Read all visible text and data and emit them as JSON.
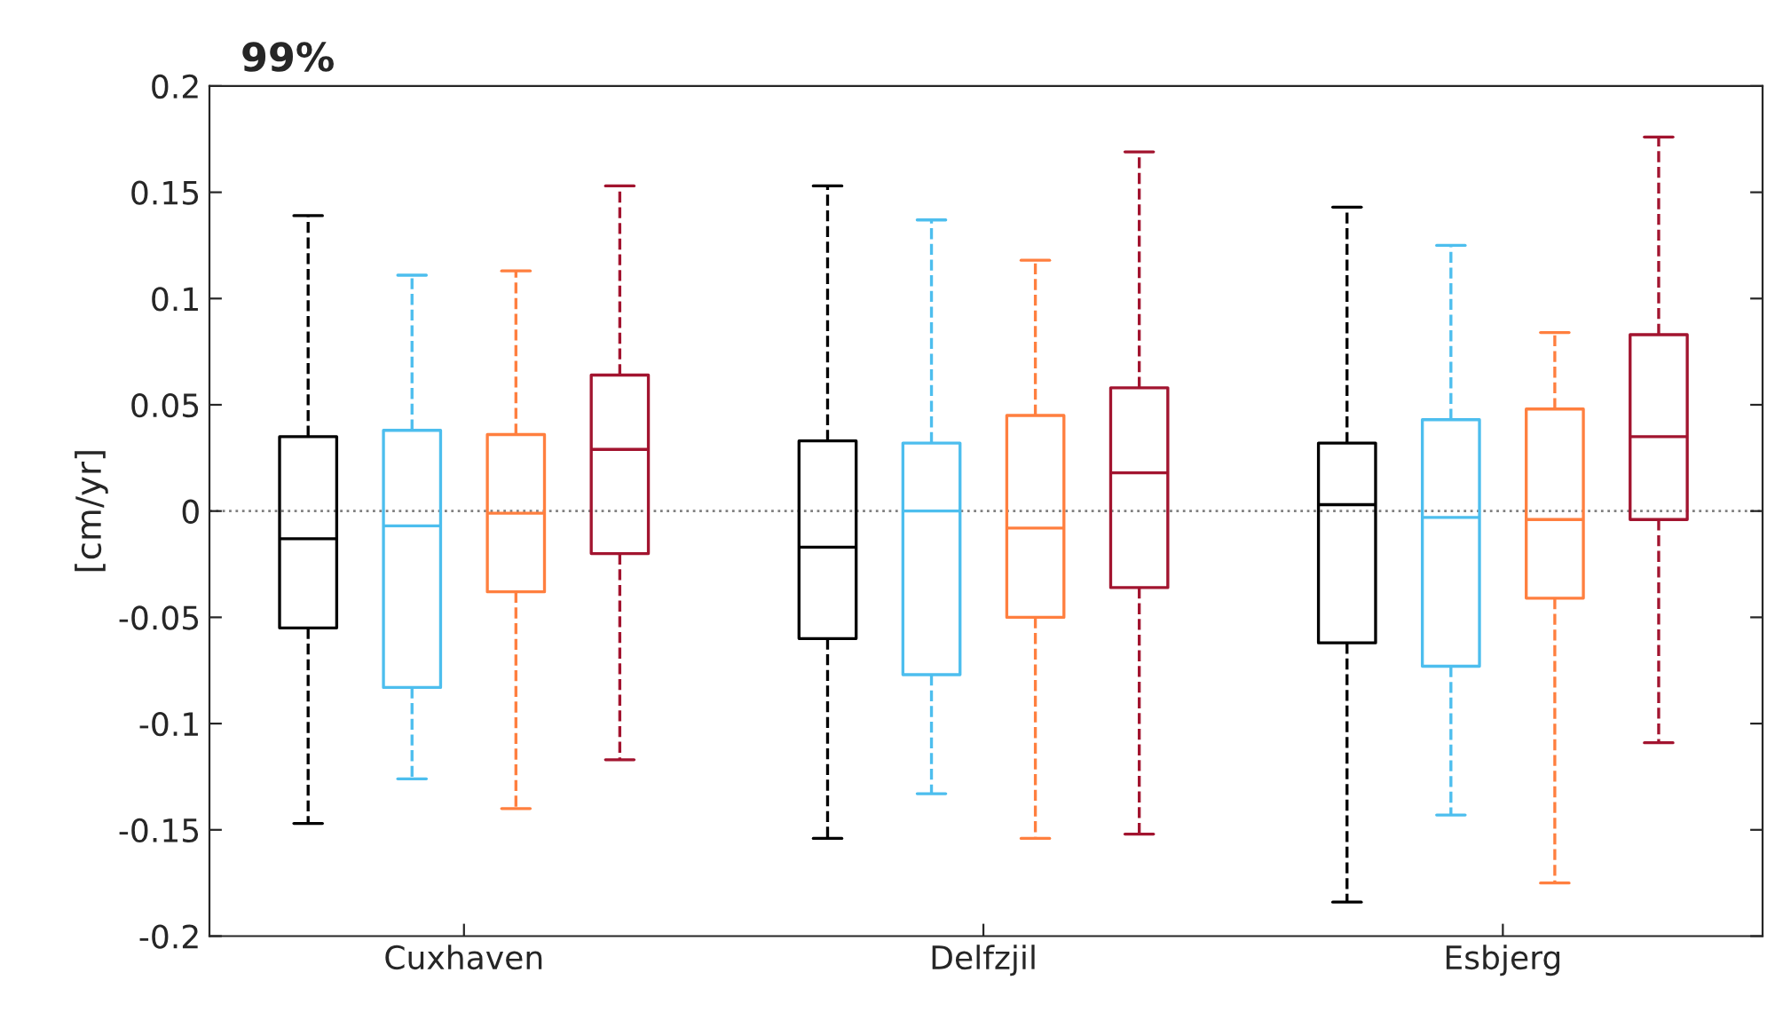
{
  "chart_data": {
    "type": "box",
    "title": "99%",
    "ylabel": "[cm/yr]",
    "categories": [
      "Cuxhaven",
      "Delfzjil",
      "Esbjerg"
    ],
    "ylim": [
      -0.2,
      0.2
    ],
    "yticks": [
      -0.2,
      -0.15,
      -0.1,
      -0.05,
      0,
      0.05,
      0.1,
      0.15,
      0.2
    ],
    "grid": false,
    "legend": false,
    "line_style": "dashed",
    "ref_lines": [
      {
        "axis": "y",
        "value": 0,
        "color": "#808080",
        "line_style": "dotted"
      }
    ],
    "series": [
      {
        "color": "#000000",
        "boxes": [
          {
            "low": -0.147,
            "q1": -0.055,
            "median": -0.013,
            "q3": 0.035,
            "high": 0.139
          },
          {
            "low": -0.154,
            "q1": -0.06,
            "median": -0.017,
            "q3": 0.033,
            "high": 0.153
          },
          {
            "low": -0.184,
            "q1": -0.062,
            "median": 0.003,
            "q3": 0.032,
            "high": 0.143
          }
        ]
      },
      {
        "color": "#4dbeee",
        "boxes": [
          {
            "low": -0.126,
            "q1": -0.083,
            "median": -0.007,
            "q3": 0.038,
            "high": 0.111
          },
          {
            "low": -0.133,
            "q1": -0.077,
            "median": 0.0,
            "q3": 0.032,
            "high": 0.137
          },
          {
            "low": -0.143,
            "q1": -0.073,
            "median": -0.003,
            "q3": 0.043,
            "high": 0.125
          }
        ]
      },
      {
        "color": "#ff7f3f",
        "boxes": [
          {
            "low": -0.14,
            "q1": -0.038,
            "median": -0.001,
            "q3": 0.036,
            "high": 0.113
          },
          {
            "low": -0.154,
            "q1": -0.05,
            "median": -0.008,
            "q3": 0.045,
            "high": 0.118
          },
          {
            "low": -0.175,
            "q1": -0.041,
            "median": -0.004,
            "q3": 0.048,
            "high": 0.084
          }
        ]
      },
      {
        "color": "#a2142f",
        "boxes": [
          {
            "low": -0.117,
            "q1": -0.02,
            "median": 0.029,
            "q3": 0.064,
            "high": 0.153
          },
          {
            "low": -0.152,
            "q1": -0.036,
            "median": 0.018,
            "q3": 0.058,
            "high": 0.169
          },
          {
            "low": -0.109,
            "q1": -0.004,
            "median": 0.035,
            "q3": 0.083,
            "high": 0.176
          }
        ]
      }
    ]
  }
}
